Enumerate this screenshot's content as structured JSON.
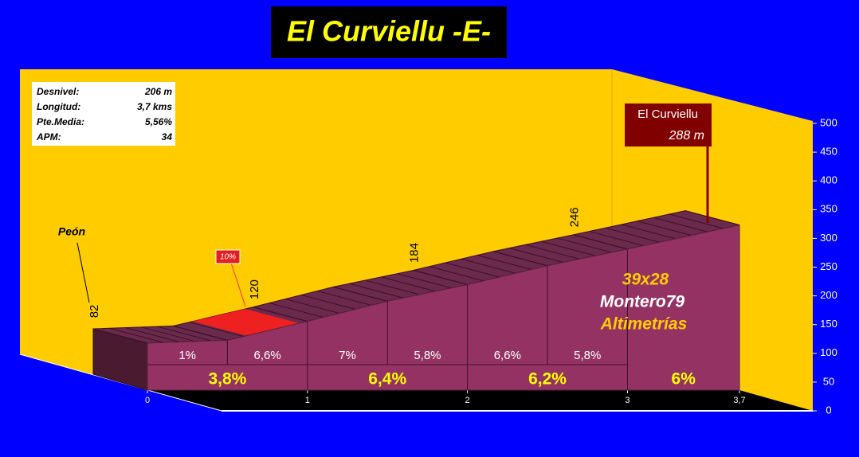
{
  "chart_data": {
    "type": "area",
    "title": "El Curviellu -E-",
    "x": [
      0,
      0.5,
      1,
      1.5,
      2,
      2.5,
      3,
      3.7
    ],
    "values": [
      82,
      87,
      120,
      155,
      184,
      217,
      246,
      288
    ],
    "labeled_points": [
      0,
      2,
      4,
      6
    ],
    "color": "#943363",
    "xlim": [
      0,
      3.7
    ],
    "xticks": [
      0,
      1,
      2,
      3,
      {
        "value": 3.7,
        "label": "3,7"
      }
    ],
    "ylim": [
      0,
      500
    ],
    "yticks": [
      0,
      50,
      100,
      150,
      200,
      250,
      300,
      350,
      400,
      450,
      500
    ],
    "grades_500m": [
      "1%",
      "6,6%",
      "7%",
      "5,8%",
      "6,6%",
      "5,8%"
    ],
    "grades_km": [
      "3,8%",
      "6,4%",
      "6,2%",
      "6%"
    ],
    "info": [
      [
        "Desnivel:",
        "206 m"
      ],
      [
        "Longitud:",
        "3,7 kms"
      ],
      [
        "Pte.Media:",
        "5,56%"
      ],
      [
        "APM:",
        "34"
      ]
    ],
    "start_label": "Peón",
    "summit_name": "El Curviellu",
    "summit_label": "288 m",
    "steep_label": "10%",
    "credits": [
      "39x28",
      "Montero79",
      "Altimetrías"
    ]
  }
}
